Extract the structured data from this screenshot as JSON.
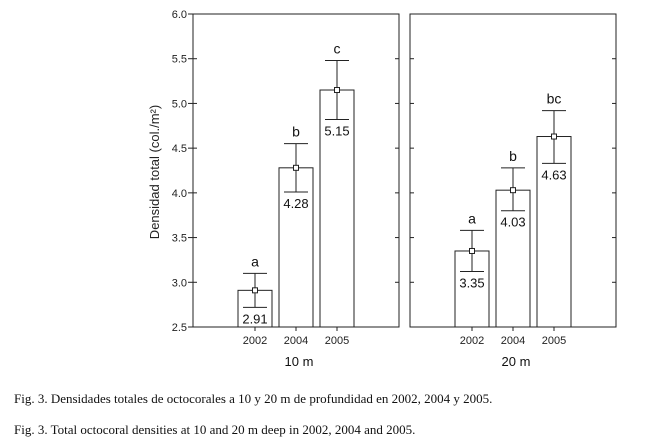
{
  "chart_data": {
    "type": "bar",
    "ylabel": "Densidad total (col./m²)",
    "ylim": [
      2.5,
      6.0
    ],
    "yticks": [
      "2.5",
      "3.0",
      "3.5",
      "4.0",
      "4.5",
      "5.0",
      "5.5",
      "6.0"
    ],
    "grid": false,
    "panels": [
      {
        "label": "10 m",
        "categories": [
          "2002",
          "2004",
          "2005"
        ],
        "values": [
          2.91,
          4.28,
          5.15
        ],
        "value_labels": [
          "2.91",
          "4.28",
          "5.15"
        ],
        "error_low": [
          2.72,
          4.01,
          4.82
        ],
        "error_high": [
          3.1,
          4.55,
          5.48
        ],
        "letters": [
          "a",
          "b",
          "c"
        ]
      },
      {
        "label": "20 m",
        "categories": [
          "2002",
          "2004",
          "2005"
        ],
        "values": [
          3.35,
          4.03,
          4.63
        ],
        "value_labels": [
          "3.35",
          "4.03",
          "4.63"
        ],
        "error_low": [
          3.12,
          3.8,
          4.33
        ],
        "error_high": [
          3.58,
          4.28,
          4.92
        ],
        "letters": [
          "a",
          "b",
          "bc"
        ]
      }
    ]
  },
  "captions": {
    "es": "Fig. 3. Densidades totales de octocorales a 10 y 20 m de profundidad en 2002, 2004 y 2005.",
    "en": "Fig. 3. Total octocoral densities at 10 and 20 m deep in 2002, 2004 and 2005."
  },
  "colors": {
    "bar_fill": "#ffffff",
    "stroke": "#222222"
  }
}
